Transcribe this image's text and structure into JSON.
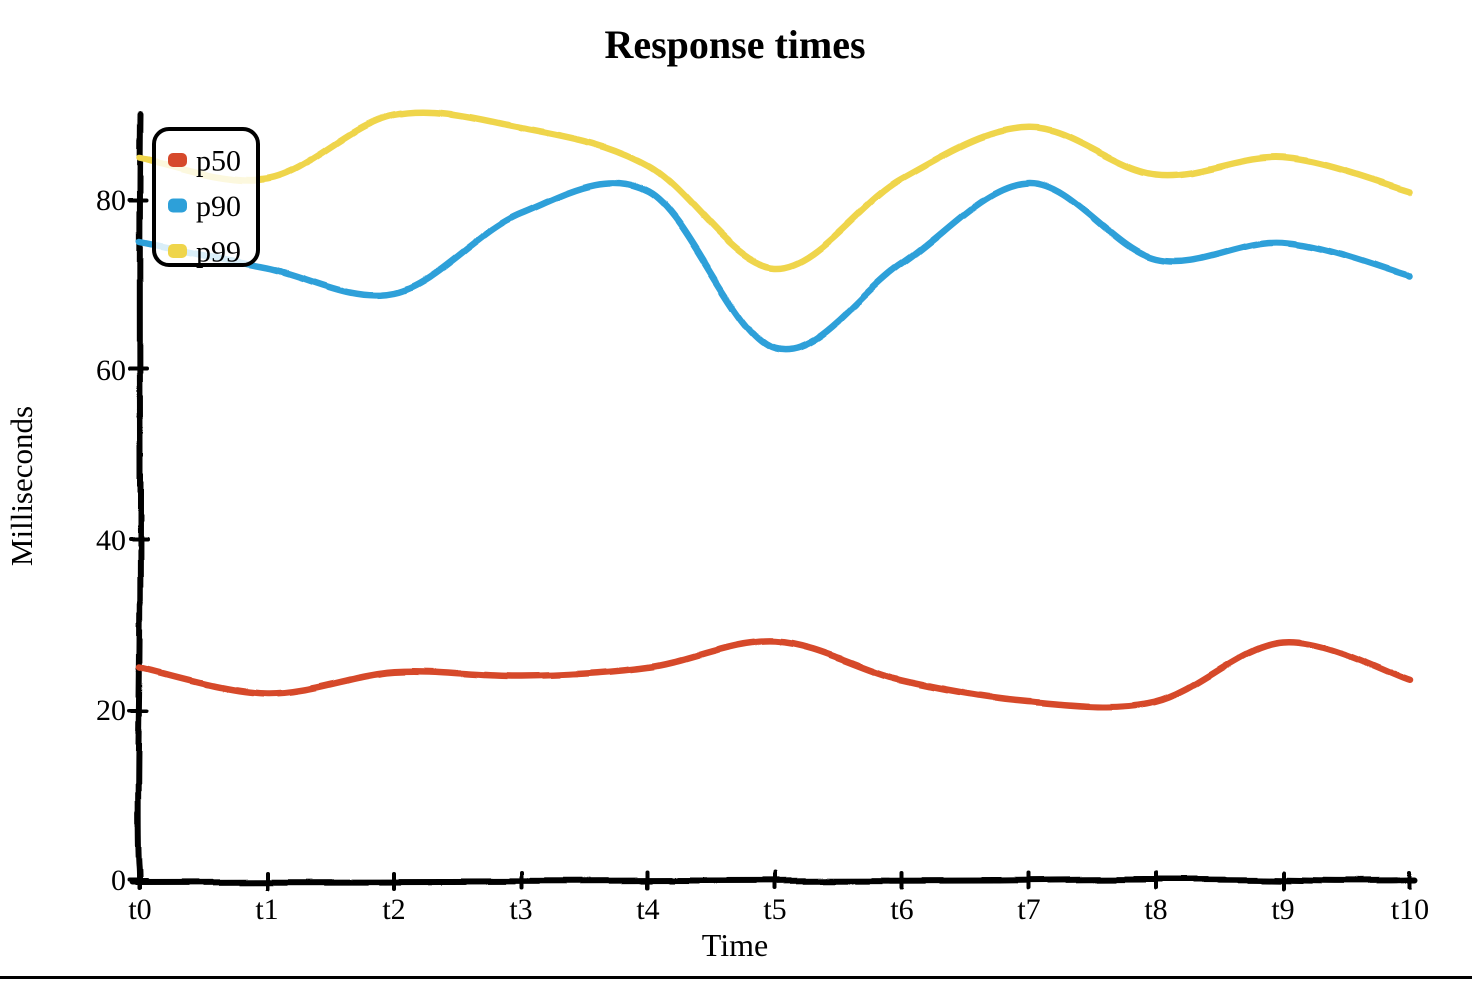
{
  "page": {
    "background": "#ffffff",
    "bottom_rule_color": "#000000"
  },
  "chart_data": {
    "type": "line",
    "style": "hand-drawn-sketch",
    "title": "Response times",
    "xlabel": "Time",
    "ylabel": "Milliseconds",
    "x_tick_labels": [
      "t0",
      "t1",
      "t2",
      "t3",
      "t4",
      "t5",
      "t6",
      "t7",
      "t8",
      "t9",
      "t10"
    ],
    "y_ticks": [
      0,
      20,
      40,
      60,
      80
    ],
    "y_tick_labels": [
      "0",
      "20",
      "40",
      "60",
      "80"
    ],
    "ylim": [
      0,
      90
    ],
    "grid": false,
    "axis_color": "#000000",
    "legend": {
      "position": "upper-left",
      "entries": [
        "p50",
        "p90",
        "p99"
      ]
    },
    "series": [
      {
        "name": "p50",
        "color": "#d6492b",
        "values": [
          25,
          22,
          24.5,
          24,
          25,
          28,
          23.5,
          21,
          21,
          28,
          23.5
        ]
      },
      {
        "name": "p90",
        "color": "#2da0d9",
        "values": [
          75,
          72,
          69,
          78.5,
          81,
          62.5,
          72.5,
          82,
          73,
          75,
          71
        ]
      },
      {
        "name": "p99",
        "color": "#efd54b",
        "values": [
          85,
          82.5,
          90,
          88.5,
          84,
          72,
          82.5,
          88.5,
          83,
          85,
          81
        ]
      }
    ]
  }
}
